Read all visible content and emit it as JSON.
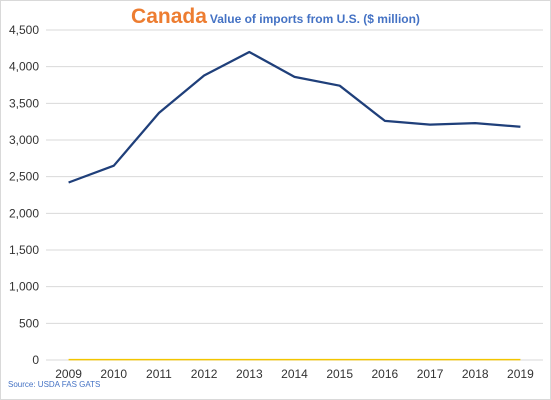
{
  "chart_data": {
    "type": "line",
    "title": "Canada",
    "subtitle": "Value of imports from U.S. ($ million)",
    "categories": [
      "2009",
      "2010",
      "2011",
      "2012",
      "2013",
      "2014",
      "2015",
      "2016",
      "2017",
      "2018",
      "2019"
    ],
    "series": [
      {
        "values": [
          2420,
          2650,
          3370,
          3880,
          4200,
          3860,
          3740,
          3260,
          3210,
          3230,
          3180
        ],
        "color": "#1f3f7a"
      },
      {
        "values": [
          5,
          5,
          5,
          5,
          5,
          5,
          5,
          5,
          5,
          5,
          5
        ],
        "color": "#f2c500"
      }
    ],
    "ylim": [
      0,
      4500
    ],
    "yticks": [
      0,
      500,
      1000,
      1500,
      2000,
      2500,
      3000,
      3500,
      4000,
      4500
    ],
    "ytick_labels": [
      "0",
      "500",
      "1,000",
      "1,500",
      "2,000",
      "2,500",
      "3,000",
      "3,500",
      "4,000",
      "4,500"
    ],
    "grid": true,
    "xlabel": "",
    "ylabel": ""
  },
  "colors": {
    "title": "#ed7d31",
    "subtitle": "#4472c4",
    "grid": "#d9d9d9",
    "source": "#4472c4"
  },
  "source": "Source: USDA FAS GATS"
}
